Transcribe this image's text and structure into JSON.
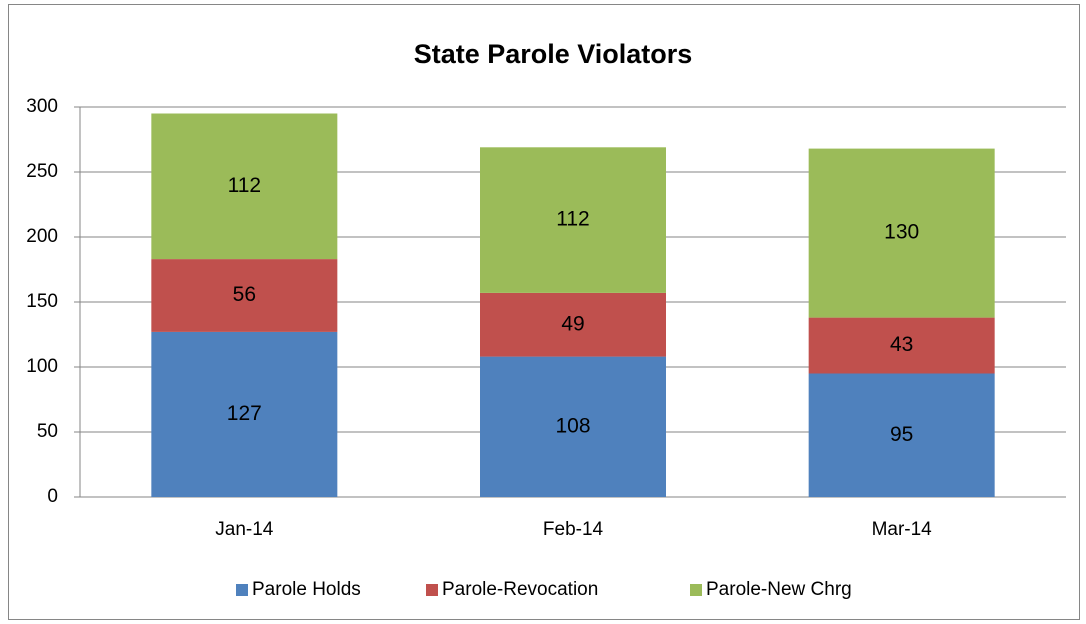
{
  "chart_data": {
    "type": "bar",
    "stacked": true,
    "title": "State Parole Violators",
    "categories": [
      "Jan-14",
      "Feb-14",
      "Mar-14"
    ],
    "series": [
      {
        "name": "Parole Holds",
        "color": "#4f81bd",
        "values": [
          127,
          108,
          95
        ]
      },
      {
        "name": "Parole-Revocation",
        "color": "#c0504d",
        "values": [
          56,
          49,
          43
        ]
      },
      {
        "name": "Parole-New Chrg",
        "color": "#9bbb59",
        "values": [
          112,
          112,
          130
        ]
      }
    ],
    "ylim": [
      0,
      300
    ],
    "yticks": [
      0,
      50,
      100,
      150,
      200,
      250,
      300
    ],
    "grid": true,
    "legend": "bottom"
  }
}
